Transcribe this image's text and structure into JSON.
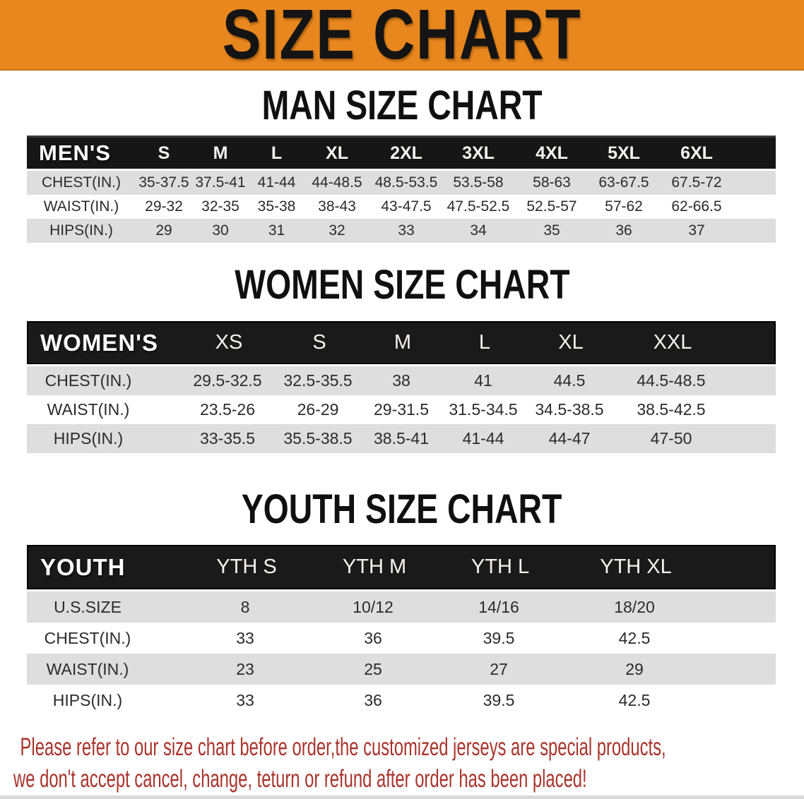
{
  "banner": {
    "title": "SIZE CHART"
  },
  "men": {
    "heading": "MAN SIZE CHART",
    "table": {
      "label": "MEN'S",
      "columns": [
        "S",
        "M",
        "L",
        "XL",
        "2XL",
        "3XL",
        "4XL",
        "5XL",
        "6XL"
      ],
      "rows": [
        {
          "label": "CHEST(IN.)",
          "values": [
            "35-37.5",
            "37.5-41",
            "41-44",
            "44-48.5",
            "48.5-53.5",
            "53.5-58",
            "58-63",
            "63-67.5",
            "67.5-72"
          ]
        },
        {
          "label": "WAIST(IN.)",
          "values": [
            "29-32",
            "32-35",
            "35-38",
            "38-43",
            "43-47.5",
            "47.5-52.5",
            "52.5-57",
            "57-62",
            "62-66.5"
          ]
        },
        {
          "label": "HIPS(IN.)",
          "values": [
            "29",
            "30",
            "31",
            "32",
            "33",
            "34",
            "35",
            "36",
            "37"
          ]
        }
      ]
    }
  },
  "women": {
    "heading": "WOMEN SIZE CHART",
    "table": {
      "label": "WOMEN'S",
      "columns": [
        "XS",
        "S",
        "M",
        "L",
        "XL",
        "XXL"
      ],
      "rows": [
        {
          "label": "CHEST(IN.)",
          "values": [
            "29.5-32.5",
            "32.5-35.5",
            "38",
            "41",
            "44.5",
            "44.5-48.5"
          ]
        },
        {
          "label": "WAIST(IN.)",
          "values": [
            "23.5-26",
            "26-29",
            "29-31.5",
            "31.5-34.5",
            "34.5-38.5",
            "38.5-42.5"
          ]
        },
        {
          "label": "HIPS(IN.)",
          "values": [
            "33-35.5",
            "35.5-38.5",
            "38.5-41",
            "41-44",
            "44-47",
            "47-50"
          ]
        }
      ]
    }
  },
  "youth": {
    "heading": "YOUTH SIZE CHART",
    "table": {
      "label": "YOUTH",
      "columns": [
        "YTH S",
        "YTH M",
        "YTH L",
        "YTH XL"
      ],
      "rows": [
        {
          "label": "U.S.SIZE",
          "values": [
            "8",
            "10/12",
            "14/16",
            "18/20"
          ]
        },
        {
          "label": "CHEST(IN.)",
          "values": [
            "33",
            "36",
            "39.5",
            "42.5"
          ]
        },
        {
          "label": "WAIST(IN.)",
          "values": [
            "23",
            "25",
            "27",
            "29"
          ]
        },
        {
          "label": "HIPS(IN.)",
          "values": [
            "33",
            "36",
            "39.5",
            "42.5"
          ]
        }
      ]
    }
  },
  "footer": {
    "line1": "Please refer to our size chart before order,the customized jerseys are special products,",
    "line2": "we don't accept cancel, change, teturn or refund after order has been placed!"
  },
  "colors": {
    "banner_bg": "#E8871E",
    "header_bar": "#161616",
    "stripe": "#DEDEDE",
    "notice_red": "#A9342C",
    "text_dark": "#2B2B2B"
  }
}
